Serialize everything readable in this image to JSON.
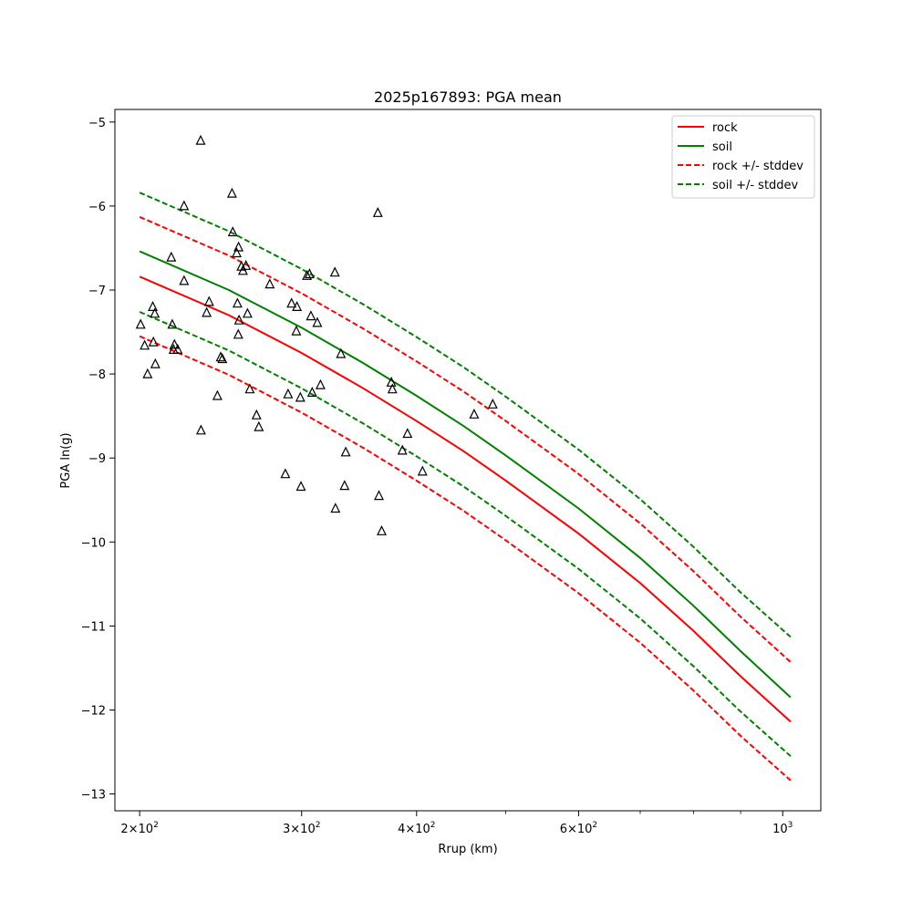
{
  "chart_data": {
    "type": "line",
    "title": "2025p167893: PGA mean",
    "xlabel": "Rrup (km)",
    "ylabel": "PGA ln(g)",
    "xscale": "log",
    "xlim": [
      188,
      1100
    ],
    "ylim": [
      -13.2,
      -4.85
    ],
    "grid": false,
    "legend_position": "top-right",
    "x_ticks": [
      {
        "value": 200,
        "mantissa": "2",
        "exponent": "2"
      },
      {
        "value": 300,
        "mantissa": "3",
        "exponent": "2"
      },
      {
        "value": 400,
        "mantissa": "4",
        "exponent": "2"
      },
      {
        "value": 600,
        "mantissa": "6",
        "exponent": "2"
      },
      {
        "value": 1000,
        "mantissa": "",
        "exponent": "3"
      }
    ],
    "x_minor_ticks": [
      500,
      700,
      800,
      900
    ],
    "y_ticks": [
      {
        "value": -5,
        "label": "−5"
      },
      {
        "value": -6,
        "label": "−6"
      },
      {
        "value": -7,
        "label": "−7"
      },
      {
        "value": -8,
        "label": "−8"
      },
      {
        "value": -9,
        "label": "−9"
      },
      {
        "value": -10,
        "label": "−10"
      },
      {
        "value": -11,
        "label": "−11"
      },
      {
        "value": -12,
        "label": "−12"
      },
      {
        "value": -13,
        "label": "−13"
      }
    ],
    "series": [
      {
        "name": "rock",
        "color": "#ff0000",
        "style": "solid",
        "x": [
          200,
          250,
          300,
          350,
          400,
          450,
          500,
          600,
          700,
          800,
          900,
          1020
        ],
        "y": [
          -6.84,
          -7.3,
          -7.75,
          -8.17,
          -8.56,
          -8.92,
          -9.27,
          -9.9,
          -10.49,
          -11.06,
          -11.6,
          -12.14
        ]
      },
      {
        "name": "soil",
        "color": "#008000",
        "style": "solid",
        "x": [
          200,
          250,
          300,
          350,
          400,
          450,
          500,
          600,
          700,
          800,
          900,
          1020
        ],
        "y": [
          -6.54,
          -7.0,
          -7.45,
          -7.87,
          -8.26,
          -8.62,
          -8.97,
          -9.6,
          -10.19,
          -10.76,
          -11.3,
          -11.85
        ]
      },
      {
        "name": "rock +/- stddev",
        "color": "#ff0000",
        "style": "dashed",
        "x": [
          200,
          250,
          300,
          350,
          400,
          450,
          500,
          600,
          700,
          800,
          900,
          1020
        ],
        "y_upper": [
          -6.13,
          -6.59,
          -7.04,
          -7.46,
          -7.85,
          -8.21,
          -8.56,
          -9.19,
          -9.78,
          -10.35,
          -10.89,
          -11.43
        ],
        "y_lower": [
          -7.55,
          -8.01,
          -8.46,
          -8.88,
          -9.27,
          -9.63,
          -9.98,
          -10.61,
          -11.2,
          -11.77,
          -12.31,
          -12.84
        ]
      },
      {
        "name": "soil +/- stddev",
        "color": "#008000",
        "style": "dashed",
        "x": [
          200,
          250,
          300,
          350,
          400,
          450,
          500,
          600,
          700,
          800,
          900,
          1020
        ],
        "y_upper": [
          -5.84,
          -6.3,
          -6.75,
          -7.17,
          -7.56,
          -7.92,
          -8.27,
          -8.9,
          -9.49,
          -10.06,
          -10.6,
          -11.13
        ],
        "y_lower": [
          -7.26,
          -7.72,
          -8.17,
          -8.59,
          -8.98,
          -9.34,
          -9.69,
          -10.32,
          -10.91,
          -11.48,
          -12.02,
          -12.55
        ]
      }
    ],
    "observations": {
      "marker": "triangle",
      "color": "#000000",
      "points": [
        [
          200.5,
          -7.41
        ],
        [
          202.5,
          -7.66
        ],
        [
          204,
          -8.0
        ],
        [
          206.7,
          -7.2
        ],
        [
          207,
          -7.62
        ],
        [
          207.7,
          -7.28
        ],
        [
          208,
          -7.88
        ],
        [
          216.5,
          -6.61
        ],
        [
          217,
          -7.41
        ],
        [
          217.7,
          -7.71
        ],
        [
          218.2,
          -7.65
        ],
        [
          220,
          -7.71
        ],
        [
          223.5,
          -6.0
        ],
        [
          223.5,
          -6.89
        ],
        [
          233,
          -5.22
        ],
        [
          233.2,
          -8.67
        ],
        [
          236.5,
          -7.27
        ],
        [
          238,
          -7.14
        ],
        [
          243,
          -8.26
        ],
        [
          245,
          -7.8
        ],
        [
          246,
          -7.82
        ],
        [
          252,
          -5.85
        ],
        [
          252.5,
          -6.31
        ],
        [
          255,
          -6.56
        ],
        [
          255.5,
          -7.16
        ],
        [
          256,
          -7.53
        ],
        [
          256.2,
          -6.49
        ],
        [
          256.5,
          -7.36
        ],
        [
          258,
          -6.72
        ],
        [
          259,
          -6.77
        ],
        [
          261,
          -6.71
        ],
        [
          262,
          -7.28
        ],
        [
          263.5,
          -8.18
        ],
        [
          268,
          -8.49
        ],
        [
          269.5,
          -8.63
        ],
        [
          277,
          -6.93
        ],
        [
          288,
          -9.19
        ],
        [
          290,
          -8.24
        ],
        [
          292.5,
          -7.16
        ],
        [
          296,
          -7.49
        ],
        [
          296.5,
          -7.2
        ],
        [
          299,
          -8.28
        ],
        [
          299.5,
          -9.34
        ],
        [
          304,
          -6.83
        ],
        [
          306,
          -6.81
        ],
        [
          307,
          -7.31
        ],
        [
          308,
          -8.22
        ],
        [
          312,
          -7.39
        ],
        [
          314.5,
          -8.13
        ],
        [
          326,
          -6.79
        ],
        [
          326.5,
          -9.6
        ],
        [
          331,
          -7.76
        ],
        [
          334,
          -9.33
        ],
        [
          335,
          -8.93
        ],
        [
          363,
          -6.08
        ],
        [
          364,
          -9.45
        ],
        [
          366.5,
          -9.87
        ],
        [
          375.5,
          -8.1
        ],
        [
          376.5,
          -8.18
        ],
        [
          386,
          -8.91
        ],
        [
          391,
          -8.71
        ],
        [
          406,
          -9.16
        ],
        [
          462,
          -8.48
        ],
        [
          484,
          -8.36
        ]
      ]
    }
  }
}
